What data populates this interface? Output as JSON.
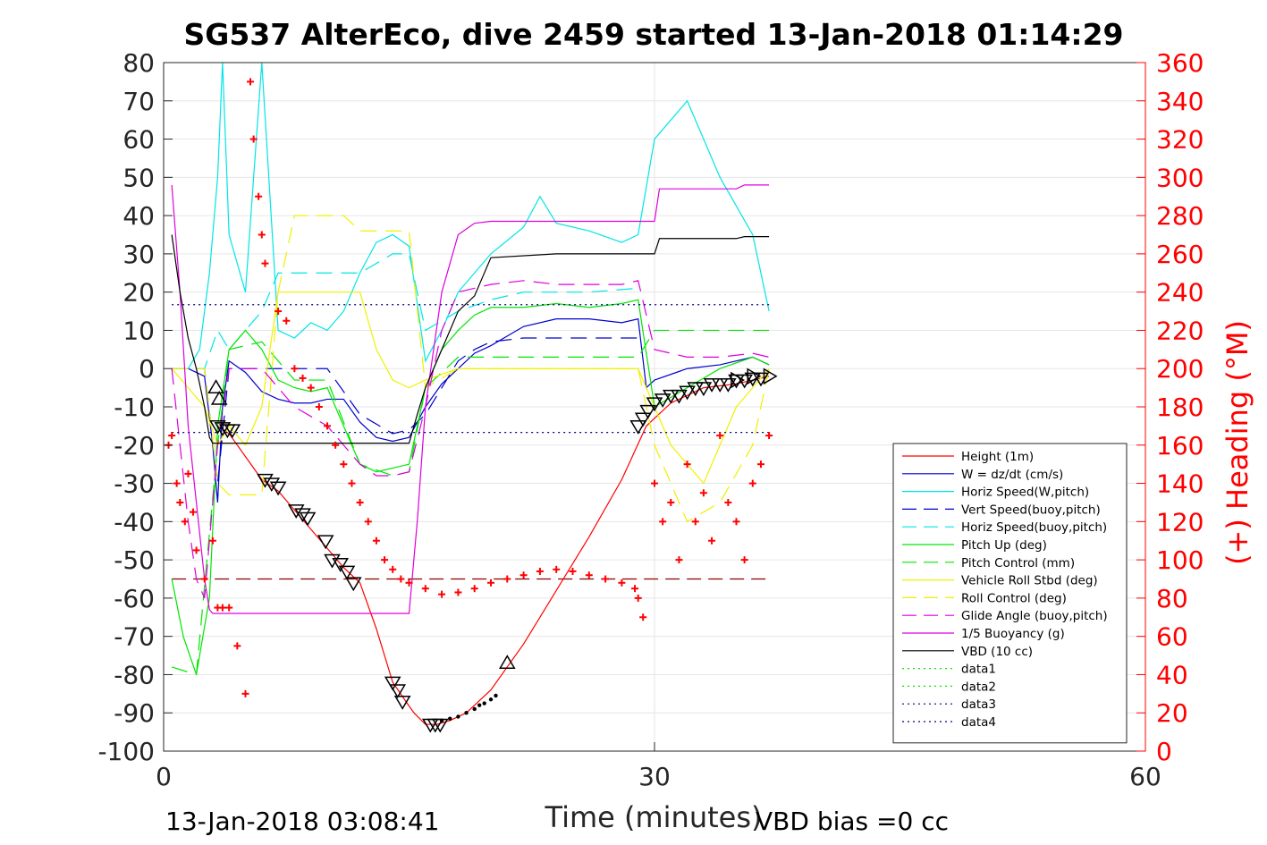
{
  "chart_data": {
    "type": "line",
    "title": "SG537 AlterEco, dive 2459 started 13-Jan-2018 01:14:29",
    "xlabel": "Time (minutes)",
    "ylabel": "",
    "y2label": "(+) Heading (°M)",
    "xlim": [
      0,
      60
    ],
    "ylim": [
      -100,
      80
    ],
    "y2lim": [
      0,
      360
    ],
    "x_ticks": [
      0,
      30,
      60
    ],
    "y_ticks": [
      80,
      70,
      60,
      50,
      40,
      30,
      20,
      10,
      0,
      -10,
      -20,
      -30,
      -40,
      -50,
      -60,
      -70,
      -80,
      -90,
      -100
    ],
    "y2_ticks": [
      360,
      340,
      320,
      300,
      280,
      260,
      240,
      220,
      200,
      180,
      160,
      140,
      120,
      100,
      80,
      60,
      40,
      20,
      0
    ],
    "grid": true,
    "legend_position": "bottom-right",
    "colors": {
      "red": "#ff0000",
      "blue": "#0000cd",
      "cyan": "#00e5e5",
      "green": "#00e600",
      "yellow": "#f0f000",
      "magenta": "#dd00dd",
      "black": "#000000",
      "navy": "#000080"
    },
    "series": [
      {
        "name": "Height (1m)",
        "color": "#ff0000",
        "style": "solid",
        "x": [
          3.3,
          4.0,
          5.0,
          6.0,
          7.0,
          8.0,
          9.0,
          10.0,
          11.0,
          12.0,
          13.0,
          14.0,
          14.8,
          15.3,
          16.0,
          16.7,
          17.5,
          18.5,
          20.0,
          22.0,
          24.0,
          26.0,
          28.0,
          29.5,
          31.0,
          33.0,
          35.0,
          37.0
        ],
        "y": [
          -15,
          -17,
          -23,
          -29,
          -32,
          -37,
          -42,
          -47,
          -52,
          -56,
          -68,
          -82,
          -87,
          -90,
          -93,
          -93,
          -92,
          -90,
          -84,
          -72,
          -58,
          -44,
          -29,
          -15,
          -9,
          -5,
          -4,
          -2
        ]
      },
      {
        "name": "W = dz/dt (cm/s)",
        "color": "#0000cd",
        "style": "solid",
        "x": [
          0.5,
          1.5,
          2.5,
          3.0,
          3.3,
          3.6,
          4.0,
          5.0,
          6.0,
          7.0,
          8.0,
          9.0,
          10.0,
          11.0,
          12.0,
          13.0,
          14.0,
          15.0,
          16.0,
          17.0,
          18.0,
          19.0,
          20.0,
          22.0,
          24.0,
          26.0,
          28.0,
          29.0,
          29.5,
          30.0,
          32.0,
          34.0,
          36.0,
          37.0
        ],
        "y": [
          0,
          0,
          -2,
          -20,
          -35,
          -10,
          2,
          -1,
          -6,
          -8,
          -9,
          -9,
          -8,
          -8,
          -14,
          -18,
          -19,
          -18,
          -10,
          -4,
          0,
          4,
          6,
          11,
          13,
          13,
          12,
          13,
          -5,
          -3,
          0,
          1,
          3,
          1
        ]
      },
      {
        "name": "Horiz Speed(W,pitch)",
        "color": "#00e5e5",
        "style": "solid",
        "x": [
          0.5,
          1.5,
          2.2,
          2.8,
          3.3,
          3.6,
          4.0,
          5.0,
          6.0,
          7.0,
          8.0,
          9.0,
          10.0,
          11.0,
          12.0,
          13.0,
          14.0,
          15.0,
          16.0,
          17.0,
          18.0,
          19.0,
          20.0,
          22.0,
          23.0,
          24.0,
          26.0,
          28.0,
          29.0,
          30.0,
          32.0,
          34.0,
          36.0,
          37.0
        ],
        "y": [
          0,
          0,
          5,
          25,
          50,
          80,
          35,
          20,
          80,
          10,
          8,
          12,
          10,
          15,
          25,
          33,
          35,
          32,
          2,
          10,
          20,
          25,
          30,
          37,
          45,
          38,
          36,
          33,
          35,
          60,
          70,
          50,
          35,
          15
        ]
      },
      {
        "name": "Vert Speed(buoy,pitch)",
        "color": "#0000cd",
        "style": "dashed",
        "x": [
          0.5,
          2.5,
          3.3,
          4.0,
          6.0,
          8.0,
          10.0,
          12.0,
          14.0,
          15.0,
          16.0,
          17.0,
          18.0,
          19.0,
          20.0,
          22.0,
          24.0,
          26.0,
          29.0
        ],
        "y": [
          0,
          0,
          -30,
          0,
          0,
          0,
          0,
          -12,
          -17,
          -16,
          -12,
          -5,
          2,
          5,
          7,
          8,
          8,
          8,
          8
        ]
      },
      {
        "name": "Horiz Speed(buoy,pitch)",
        "color": "#00e5e5",
        "style": "dashed",
        "x": [
          0.5,
          2.5,
          3.3,
          4.0,
          6.0,
          7.0,
          8.0,
          10.0,
          12.0,
          14.0,
          15.0,
          16.0,
          18.0,
          20.0,
          22.0,
          24.0,
          26.0,
          29.0
        ],
        "y": [
          0,
          0,
          10,
          5,
          15,
          25,
          25,
          25,
          25,
          30,
          30,
          10,
          15,
          18,
          20,
          20,
          20,
          21
        ]
      },
      {
        "name": "Pitch Up (deg)",
        "color": "#00e600",
        "style": "solid",
        "x": [
          0.5,
          1.2,
          2.0,
          2.8,
          3.3,
          4.0,
          5.0,
          6.0,
          7.0,
          8.0,
          9.0,
          10.0,
          11.0,
          12.0,
          13.0,
          14.0,
          15.0,
          16.0,
          17.0,
          18.0,
          19.0,
          20.0,
          22.0,
          24.0,
          26.0,
          28.0,
          29.0,
          30.0,
          32.0,
          34.0,
          36.0,
          37.0
        ],
        "y": [
          -55,
          -70,
          -80,
          -60,
          -15,
          5,
          10,
          5,
          -3,
          -5,
          -6,
          -5,
          -15,
          -25,
          -27,
          -26,
          -25,
          -5,
          5,
          10,
          14,
          16,
          16,
          17,
          16,
          17,
          18,
          -10,
          -5,
          0,
          3,
          1
        ]
      },
      {
        "name": "Pitch Control (mm)",
        "color": "#00e600",
        "style": "dashed",
        "x": [
          0.5,
          2.0,
          3.3,
          4.0,
          6.0,
          8.0,
          10.0,
          12.0,
          14.0,
          15.0,
          16.0,
          18.0,
          20.0,
          22.0,
          24.0,
          26.0,
          28.0,
          29.0,
          30.0,
          32.0,
          34.0,
          36.0,
          37.0
        ],
        "y": [
          -78,
          -80,
          -20,
          5,
          7,
          -3,
          -3,
          -25,
          -28,
          -27,
          -5,
          3,
          3,
          3,
          3,
          3,
          3,
          3,
          10,
          10,
          10,
          10,
          10
        ]
      },
      {
        "name": "Vehicle Roll Stbd (deg)",
        "color": "#f0f000",
        "style": "solid",
        "x": [
          0.5,
          1.5,
          2.5,
          3.3,
          4.0,
          5.0,
          6.0,
          7.0,
          8.0,
          9.0,
          10.0,
          11.0,
          12.0,
          13.0,
          14.0,
          15.0,
          16.0,
          18.0,
          20.0,
          22.0,
          24.0,
          26.0,
          28.0,
          29.0,
          30.0,
          31.0,
          32.0,
          33.0,
          34.0,
          35.0,
          36.0,
          37.0
        ],
        "y": [
          0,
          -5,
          -10,
          -20,
          -15,
          -20,
          -10,
          20,
          20,
          20,
          20,
          20,
          20,
          5,
          -3,
          -5,
          -3,
          0,
          0,
          0,
          0,
          0,
          0,
          0,
          -10,
          -20,
          -25,
          -30,
          -20,
          -10,
          -5,
          0
        ]
      },
      {
        "name": "Roll Control (deg)",
        "color": "#f0f000",
        "style": "dashed",
        "x": [
          0.5,
          2.5,
          3.3,
          4.0,
          6.0,
          7.0,
          8.0,
          9.0,
          10.0,
          11.0,
          12.0,
          13.0,
          14.0,
          15.0,
          16.0,
          18.0,
          20.0,
          22.0,
          24.0,
          26.0,
          28.0,
          29.0,
          30.0,
          32.0,
          34.0,
          36.0,
          37.0
        ],
        "y": [
          0,
          0,
          -30,
          -33,
          -33,
          20,
          40,
          40,
          40,
          40,
          36,
          36,
          36,
          36,
          -5,
          0,
          0,
          0,
          0,
          0,
          0,
          0,
          -20,
          -40,
          -35,
          -20,
          0
        ]
      },
      {
        "name": "Glide Angle (buoy,pitch)",
        "color": "#dd00dd",
        "style": "dashed",
        "x": [
          0.5,
          1.5,
          2.0,
          2.5,
          3.3,
          4.0,
          6.0,
          8.0,
          10.0,
          12.0,
          13.0,
          14.0,
          15.0,
          16.0,
          17.0,
          18.0,
          20.0,
          22.0,
          24.0,
          26.0,
          28.0,
          29.0,
          30.0,
          32.0,
          34.0,
          36.0,
          37.0
        ],
        "y": [
          0,
          -40,
          -55,
          -60,
          -20,
          0,
          0,
          -10,
          -15,
          -25,
          -28,
          -28,
          -27,
          -10,
          10,
          20,
          22,
          23,
          22,
          22,
          22,
          23,
          5,
          3,
          3,
          4,
          3
        ]
      },
      {
        "name": "1/5 Buoyancy (g)",
        "color": "#dd00dd",
        "style": "solid",
        "x": [
          0.5,
          1.0,
          1.5,
          2.0,
          2.5,
          2.8,
          3.0,
          3.3,
          15.0,
          15.5,
          16.0,
          17.0,
          18.0,
          19.0,
          20.0,
          24.0,
          28.0,
          29.5,
          30.0,
          30.3,
          35.0,
          35.5,
          37.0
        ],
        "y": [
          48,
          20,
          -15,
          -35,
          -55,
          -63,
          -64,
          -64,
          -64,
          -40,
          -10,
          20,
          35,
          38,
          38.5,
          38.5,
          38.5,
          38.5,
          38.5,
          47,
          47,
          48,
          48
        ]
      },
      {
        "name": "VBD (10 cc)",
        "color": "#000000",
        "style": "solid",
        "x": [
          0.5,
          1.0,
          1.5,
          2.0,
          2.5,
          2.8,
          3.0,
          3.3,
          15.0,
          15.5,
          16.0,
          17.0,
          18.0,
          19.0,
          20.0,
          24.0,
          28.0,
          29.5,
          30.0,
          30.3,
          35.0,
          35.5,
          37.0
        ],
        "y": [
          35,
          20,
          8,
          0,
          -10,
          -18,
          -19.5,
          -19.5,
          -19.5,
          -12,
          -5,
          5,
          15,
          19,
          29,
          30,
          30,
          30,
          30,
          34,
          34,
          34.5,
          34.5
        ]
      },
      {
        "name": "data1",
        "color": "#00e600",
        "style": "dotted",
        "x": [],
        "y": []
      },
      {
        "name": "data2",
        "color": "#00e600",
        "style": "dotted",
        "x": [],
        "y": []
      },
      {
        "name": "data3",
        "color": "#000080",
        "style": "dotted",
        "x": [
          0.5,
          37.0
        ],
        "y": [
          16.7,
          16.7
        ]
      },
      {
        "name": "data4",
        "color": "#000080",
        "style": "dotted",
        "x": [
          0.5,
          37.0
        ],
        "y": [
          -16.7,
          -16.7
        ]
      }
    ],
    "reference_line": {
      "color": "#8b0000",
      "style": "dashed",
      "x": [
        0.5,
        37.0
      ],
      "y": [
        -55,
        -55
      ]
    },
    "heading_points": {
      "color": "#ff0000",
      "marker": "+",
      "x": [
        0.3,
        0.5,
        0.8,
        1.0,
        1.3,
        1.5,
        1.8,
        2.0,
        2.5,
        3.0,
        3.3,
        3.6,
        4.0,
        4.5,
        5.0,
        5.3,
        5.5,
        5.8,
        6.0,
        6.2,
        7.0,
        7.5,
        8.0,
        8.5,
        9.0,
        9.5,
        10.0,
        10.5,
        11.0,
        11.5,
        12.0,
        12.5,
        13.0,
        13.5,
        14.0,
        14.5,
        15.0,
        16.0,
        17.0,
        18.0,
        19.0,
        20.0,
        21.0,
        22.0,
        23.0,
        24.0,
        25.0,
        26.0,
        27.0,
        28.0,
        28.8,
        29.0,
        29.3,
        30.0,
        30.5,
        31.0,
        31.5,
        32.0,
        32.5,
        33.0,
        33.5,
        34.0,
        34.5,
        35.0,
        35.5,
        36.0,
        36.5,
        37.0
      ],
      "y": [
        160,
        165,
        140,
        130,
        120,
        145,
        125,
        105,
        90,
        110,
        75,
        75,
        75,
        55,
        30,
        350,
        320,
        290,
        270,
        255,
        230,
        225,
        200,
        195,
        190,
        180,
        170,
        160,
        150,
        140,
        130,
        120,
        110,
        100,
        95,
        90,
        88,
        85,
        82,
        83,
        85,
        88,
        90,
        92,
        94,
        95,
        94,
        92,
        90,
        88,
        85,
        80,
        70,
        140,
        120,
        130,
        100,
        150,
        120,
        135,
        110,
        165,
        130,
        120,
        100,
        140,
        150,
        165
      ]
    },
    "markers": {
      "triangle_up": {
        "x": [
          3.2,
          3.4,
          21.0
        ],
        "y": [
          -5,
          -8,
          -77
        ]
      },
      "triangle_down": {
        "x": [
          3.3,
          3.6,
          3.9,
          4.2,
          6.2,
          6.6,
          7.0,
          8.1,
          8.5,
          8.8,
          9.9,
          10.3,
          10.8,
          11.2,
          11.6,
          14.0,
          14.3,
          14.6,
          16.3,
          16.6,
          16.9,
          29.0,
          29.3,
          29.6,
          30.0,
          30.5,
          31.0,
          31.5,
          32.0,
          32.5,
          33.0,
          33.5,
          34.0,
          34.5,
          35.0,
          35.5,
          36.0,
          36.5
        ],
        "y": [
          -15,
          -15.5,
          -16,
          -16,
          -29,
          -30,
          -31,
          -37,
          -38,
          -39,
          -45,
          -50,
          -51,
          -53,
          -56,
          -82,
          -84,
          -87,
          -93,
          -93,
          -93,
          -15,
          -13,
          -11,
          -9,
          -8,
          -7,
          -7,
          -6,
          -5,
          -5,
          -4,
          -4,
          -4,
          -3,
          -3,
          -2.5,
          -2.5
        ]
      },
      "triangle_right": {
        "x": [
          35.0,
          36.0,
          37.0
        ],
        "y": [
          -3,
          -2,
          -2
        ]
      },
      "dots": {
        "x": [
          17.0,
          17.5,
          18.0,
          18.5,
          19.0,
          19.3,
          19.6,
          20.0,
          20.3
        ],
        "y": [
          -92,
          -91.5,
          -91,
          -90,
          -89,
          -88,
          -87.5,
          -86.5,
          -85.5
        ]
      }
    }
  },
  "footer": {
    "timestamp": "13-Jan-2018 03:08:41",
    "vbd_bias": "VBD bias =0 cc"
  }
}
